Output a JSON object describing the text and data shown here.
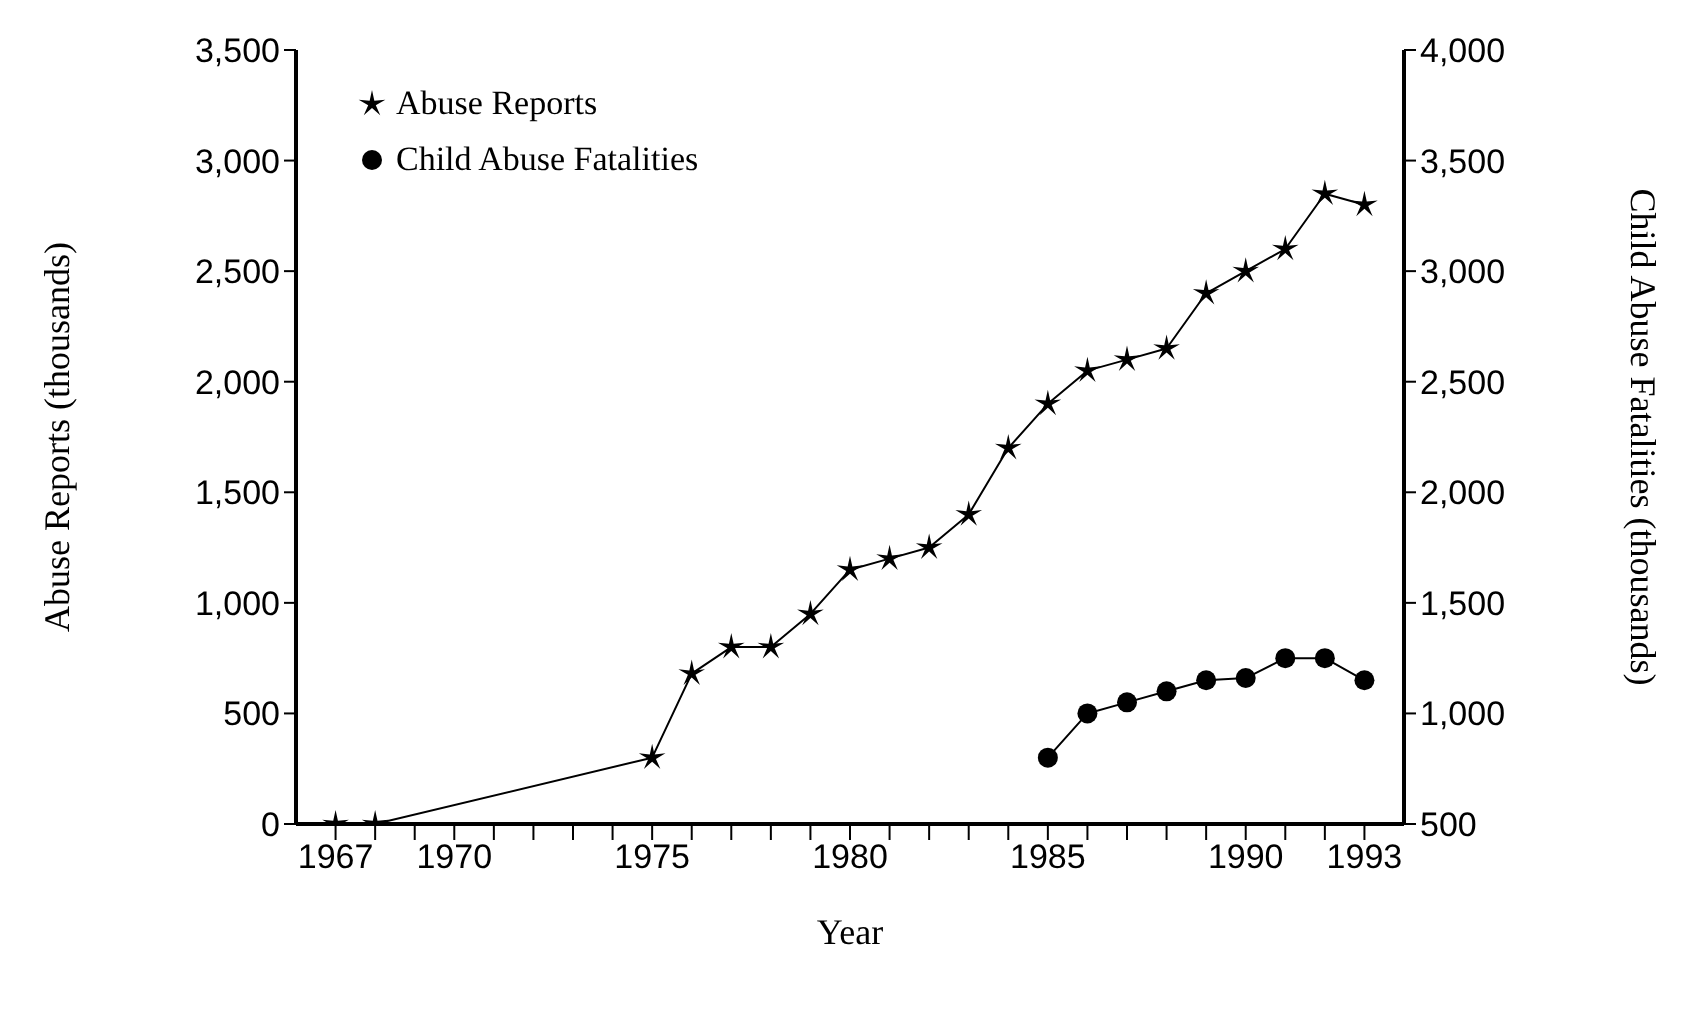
{
  "chart_data": {
    "type": "line",
    "xlabel": "Year",
    "ylabel": "Abuse Reports (thousands)",
    "y2label": "Child Abuse Fatalities (thousands)",
    "x": [
      1967,
      1968,
      1975,
      1976,
      1977,
      1978,
      1979,
      1980,
      1981,
      1982,
      1983,
      1984,
      1985,
      1986,
      1987,
      1988,
      1989,
      1990,
      1991,
      1992,
      1993
    ],
    "series": [
      {
        "name": "Abuse Reports",
        "color": "#000000",
        "marker": "star",
        "values": [
          0,
          0,
          300,
          680,
          800,
          800,
          950,
          1150,
          1200,
          1250,
          1400,
          1700,
          1900,
          2050,
          2100,
          2150,
          2400,
          2500,
          2600,
          2850,
          2800
        ]
      },
      {
        "name": "Child Abuse Fatalities",
        "color": "#000000",
        "marker": "circle",
        "axis": "y2",
        "values": [
          null,
          null,
          null,
          null,
          null,
          null,
          null,
          null,
          null,
          null,
          null,
          null,
          800,
          1000,
          1050,
          1100,
          1150,
          1160,
          1250,
          1250,
          1150
        ]
      }
    ],
    "xlim": [
      1966,
      1994
    ],
    "xticks": [
      1967,
      {
        "value": 1968,
        "label": null
      },
      {
        "value": 1969,
        "label": null
      },
      1970,
      {
        "value": 1971,
        "label": null
      },
      {
        "value": 1972,
        "label": null
      },
      {
        "value": 1973,
        "label": null
      },
      {
        "value": 1974,
        "label": null
      },
      1975,
      {
        "value": 1976,
        "label": null
      },
      {
        "value": 1977,
        "label": null
      },
      {
        "value": 1978,
        "label": null
      },
      {
        "value": 1979,
        "label": null
      },
      1980,
      {
        "value": 1981,
        "label": null
      },
      {
        "value": 1982,
        "label": null
      },
      {
        "value": 1983,
        "label": null
      },
      {
        "value": 1984,
        "label": null
      },
      1985,
      {
        "value": 1986,
        "label": null
      },
      {
        "value": 1987,
        "label": null
      },
      {
        "value": 1988,
        "label": null
      },
      {
        "value": 1989,
        "label": null
      },
      1990,
      {
        "value": 1991,
        "label": null
      },
      {
        "value": 1992,
        "label": null
      },
      1993
    ],
    "ylim": [
      0,
      3500
    ],
    "yticks": [
      0,
      500,
      {
        "value": 1000,
        "label": "1,000"
      },
      {
        "value": 1500,
        "label": "1,500"
      },
      {
        "value": 2000,
        "label": "2,000"
      },
      {
        "value": 2500,
        "label": "2,500"
      },
      {
        "value": 3000,
        "label": "3,000"
      },
      {
        "value": 3500,
        "label": "3,500"
      }
    ],
    "y2lim": [
      500,
      4000
    ],
    "y2ticks": [
      500,
      {
        "value": 1000,
        "label": "1,000"
      },
      {
        "value": 1500,
        "label": "1,500"
      },
      {
        "value": 2000,
        "label": "2,000"
      },
      {
        "value": 2500,
        "label": "2,500"
      },
      {
        "value": 3000,
        "label": "3,000"
      },
      {
        "value": 3500,
        "label": "3,500"
      },
      {
        "value": 4000,
        "label": "4,000"
      }
    ],
    "legend": "top left",
    "line_style": "solid"
  }
}
